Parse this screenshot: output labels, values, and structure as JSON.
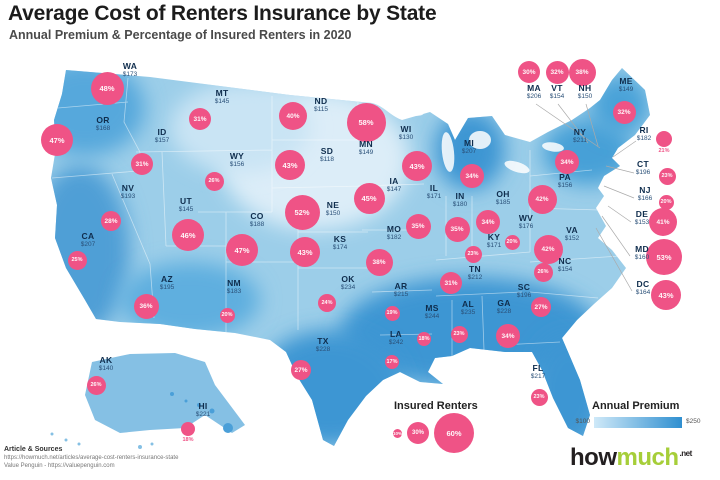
{
  "title": "Average Cost of Renters Insurance by State",
  "subtitle": "Annual Premium & Percentage of Insured Renters in 2020",
  "legend": {
    "bubble": {
      "title": "Insured Renters",
      "sizes": [
        "10%",
        "30%",
        "60%"
      ]
    },
    "gradient": {
      "title": "Annual Premium",
      "min": "$100",
      "max": "$250"
    }
  },
  "footer": {
    "sources_title": "Article & Sources",
    "source_lines": [
      "https://howmuch.net/articles/average-cost-renters-insurance-state",
      "Value Penguin - https://valuepenguin.com"
    ],
    "logo": {
      "how": "how",
      "much": "much",
      "net": ".net"
    }
  },
  "colors": {
    "bubble_pink": "#ef5386",
    "map_light": "#cfe9f8",
    "map_dark": "#2f8fd0",
    "label_navy": "#0f2d4d",
    "logo_green": "#a6ce39"
  },
  "chart_data": {
    "type": "heatmap",
    "title": "Average Cost of Renters Insurance by State",
    "subtitle": "Annual Premium & Percentage of Insured Renters in 2020",
    "units": {
      "premium": "USD per year",
      "insured_pct": "% of renters insured"
    },
    "annual_premium_range": [
      100,
      250
    ],
    "bubble_legend_pcts": [
      10,
      30,
      60
    ],
    "states": [
      {
        "state": "WA",
        "premium": 173,
        "insured_pct": 48
      },
      {
        "state": "OR",
        "premium": 168,
        "insured_pct": 47
      },
      {
        "state": "CA",
        "premium": 207,
        "insured_pct": 25
      },
      {
        "state": "NV",
        "premium": 193,
        "insured_pct": 28
      },
      {
        "state": "ID",
        "premium": 157,
        "insured_pct": 31
      },
      {
        "state": "MT",
        "premium": 145,
        "insured_pct": 31
      },
      {
        "state": "WY",
        "premium": 156,
        "insured_pct": 26
      },
      {
        "state": "UT",
        "premium": 145,
        "insured_pct": 46
      },
      {
        "state": "CO",
        "premium": 188,
        "insured_pct": 47
      },
      {
        "state": "AZ",
        "premium": 195,
        "insured_pct": 36
      },
      {
        "state": "NM",
        "premium": 183,
        "insured_pct": 20
      },
      {
        "state": "ND",
        "premium": 115,
        "insured_pct": 40
      },
      {
        "state": "SD",
        "premium": 118,
        "insured_pct": 43
      },
      {
        "state": "NE",
        "premium": 150,
        "insured_pct": 52
      },
      {
        "state": "KS",
        "premium": 174,
        "insured_pct": 43
      },
      {
        "state": "OK",
        "premium": 234,
        "insured_pct": 24
      },
      {
        "state": "TX",
        "premium": 228,
        "insured_pct": 27
      },
      {
        "state": "MN",
        "premium": 149,
        "insured_pct": 58
      },
      {
        "state": "IA",
        "premium": 147,
        "insured_pct": 45
      },
      {
        "state": "MO",
        "premium": 182,
        "insured_pct": 38
      },
      {
        "state": "AR",
        "premium": 215,
        "insured_pct": 19
      },
      {
        "state": "LA",
        "premium": 242,
        "insured_pct": 17
      },
      {
        "state": "WI",
        "premium": 130,
        "insured_pct": 43
      },
      {
        "state": "IL",
        "premium": 171,
        "insured_pct": 35
      },
      {
        "state": "IN",
        "premium": 180,
        "insured_pct": 35
      },
      {
        "state": "MI",
        "premium": 207,
        "insured_pct": 34
      },
      {
        "state": "OH",
        "premium": 185,
        "insured_pct": 34
      },
      {
        "state": "KY",
        "premium": 171,
        "insured_pct": 23
      },
      {
        "state": "TN",
        "premium": 212,
        "insured_pct": 31
      },
      {
        "state": "WV",
        "premium": 176,
        "insured_pct": 20
      },
      {
        "state": "VA",
        "premium": 152,
        "insured_pct": 42
      },
      {
        "state": "NC",
        "premium": 154,
        "insured_pct": 26
      },
      {
        "state": "SC",
        "premium": 196,
        "insured_pct": 27
      },
      {
        "state": "GA",
        "premium": 228,
        "insured_pct": 34
      },
      {
        "state": "AL",
        "premium": 235,
        "insured_pct": 23
      },
      {
        "state": "MS",
        "premium": 244,
        "insured_pct": 18
      },
      {
        "state": "FL",
        "premium": 217,
        "insured_pct": 23
      },
      {
        "state": "PA",
        "premium": 156,
        "insured_pct": 42
      },
      {
        "state": "NY",
        "premium": 211,
        "insured_pct": 34
      },
      {
        "state": "ME",
        "premium": 149,
        "insured_pct": 32
      },
      {
        "state": "MA",
        "premium": 206,
        "insured_pct": 30
      },
      {
        "state": "VT",
        "premium": 154,
        "insured_pct": 32
      },
      {
        "state": "NH",
        "premium": 150,
        "insured_pct": 38
      },
      {
        "state": "RI",
        "premium": 182,
        "insured_pct": 21
      },
      {
        "state": "CT",
        "premium": 196,
        "insured_pct": 23
      },
      {
        "state": "NJ",
        "premium": 166,
        "insured_pct": 20
      },
      {
        "state": "DE",
        "premium": 153,
        "insured_pct": 41
      },
      {
        "state": "MD",
        "premium": 160,
        "insured_pct": 53
      },
      {
        "state": "DC",
        "premium": 164,
        "insured_pct": 43
      },
      {
        "state": "AK",
        "premium": 140,
        "insured_pct": 26
      },
      {
        "state": "HI",
        "premium": 221,
        "insured_pct": 18
      }
    ]
  }
}
